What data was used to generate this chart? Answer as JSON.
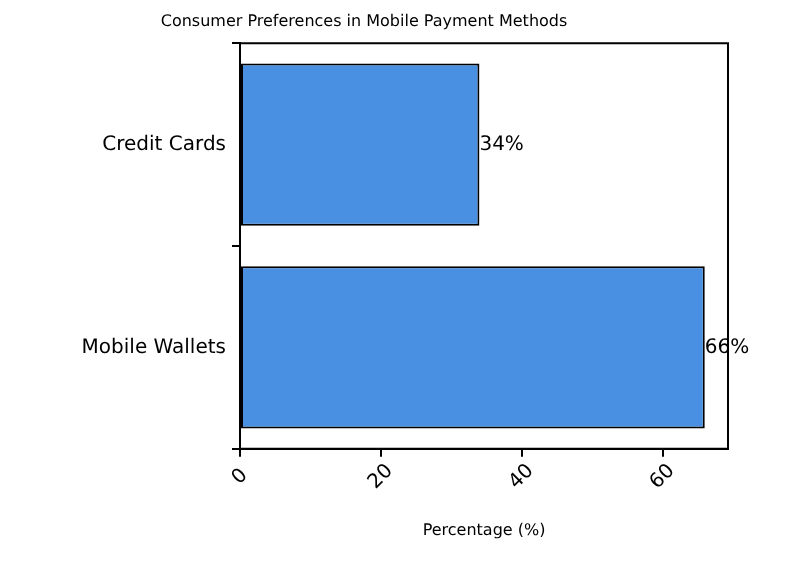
{
  "chart_data": {
    "type": "bar",
    "orientation": "horizontal",
    "title": "Consumer Preferences in Mobile Payment Methods",
    "xlabel": "Percentage (%)",
    "categories": [
      "Credit Cards",
      "Mobile Wallets"
    ],
    "values": [
      34,
      66
    ],
    "value_labels": [
      "34%",
      "66%"
    ],
    "color": "#4a90e2",
    "xlim": [
      0,
      69.3
    ],
    "xticks": [
      0,
      20,
      40,
      60
    ],
    "grid": false,
    "legend": false
  }
}
